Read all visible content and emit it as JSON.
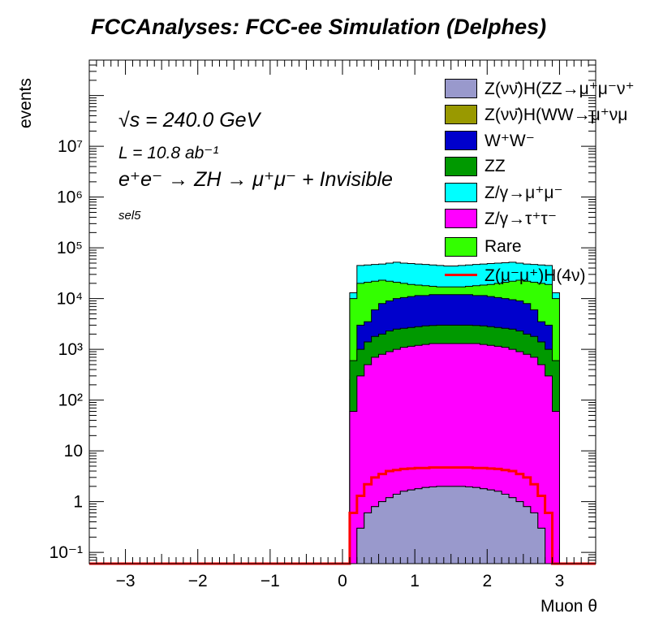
{
  "chart_data": {
    "type": "stacked-histogram",
    "title": "FCCAnalyses: FCC-ee Simulation (Delphes)",
    "xlabel": "Muon θ",
    "ylabel": "events",
    "xlim": [
      -3.5,
      3.5
    ],
    "ylim": [
      0.06,
      500000000
    ],
    "log_y": true,
    "x_ticks": [
      "−3",
      "−2",
      "−1",
      "0",
      "1",
      "2",
      "3"
    ],
    "x_tick_values": [
      -3,
      -2,
      -1,
      0,
      1,
      2,
      3
    ],
    "y_ticks": [
      "10⁻¹",
      "1",
      "10",
      "10²",
      "10³",
      "10⁴",
      "10⁵",
      "10⁶",
      "10⁷"
    ],
    "y_tick_values": [
      0.1,
      1,
      10,
      100,
      1000,
      10000,
      100000,
      1000000,
      10000000
    ],
    "annotations": [
      "√s = 240.0 GeV",
      "L = 10.8 ab⁻¹",
      "e⁺e⁻ → ZH → μ⁺μ⁻ + Invisible",
      "sel5"
    ],
    "legend_placement": "top-right",
    "bin_range": [
      0.1,
      3.0
    ],
    "bin_width": 0.1,
    "series": [
      {
        "name": "Z(νν̄)H(ZZ→μ⁺μ⁻ν⁺",
        "color": "#9999cc",
        "top": [
          0.06,
          0.3,
          0.6,
          0.8,
          1.0,
          1.2,
          1.4,
          1.6,
          1.7,
          1.8,
          1.9,
          1.95,
          2.0,
          2.0,
          2.0,
          2.0,
          1.95,
          1.9,
          1.8,
          1.7,
          1.6,
          1.4,
          1.2,
          1.0,
          0.8,
          0.6,
          0.3,
          0.06,
          0.06
        ]
      },
      {
        "name": "Z(νν̄)H(WW→μ⁺νμ",
        "color": "#999900",
        "top": [
          0.06,
          0.3,
          0.6,
          0.8,
          1.0,
          1.2,
          1.4,
          1.6,
          1.7,
          1.8,
          1.9,
          1.95,
          2.0,
          2.0,
          2.0,
          2.0,
          1.95,
          1.9,
          1.8,
          1.7,
          1.6,
          1.4,
          1.2,
          1.0,
          0.8,
          0.6,
          0.3,
          0.06,
          0.06
        ]
      },
      {
        "name": "W⁺W⁻",
        "color": "#0000cc",
        "top": [
          250,
          3000,
          3500,
          6000,
          8000,
          9000,
          10000,
          10500,
          11000,
          11500,
          11500,
          12000,
          12000,
          12000,
          12000,
          12000,
          12000,
          11500,
          11500,
          11000,
          10500,
          10000,
          9500,
          9000,
          8000,
          6000,
          3500,
          3000,
          250
        ]
      },
      {
        "name": "ZZ",
        "color": "#009900",
        "top": [
          600,
          1000,
          1400,
          1800,
          2000,
          2300,
          2500,
          2600,
          2700,
          2800,
          2900,
          2950,
          3000,
          3000,
          3000,
          3000,
          3000,
          2950,
          2900,
          2800,
          2700,
          2600,
          2500,
          2300,
          2000,
          1800,
          1400,
          1000,
          600
        ]
      },
      {
        "name": "Z/γ→μ⁺μ⁻",
        "color": "#00ffff",
        "top": [
          13000,
          45000,
          46000,
          47000,
          48000,
          50000,
          52000,
          50000,
          49000,
          48000,
          47000,
          46000,
          45000,
          44000,
          44000,
          45000,
          46000,
          47000,
          48000,
          49000,
          50000,
          51000,
          52000,
          50000,
          48000,
          47000,
          46000,
          45000,
          13000
        ]
      },
      {
        "name": "Z/γ→τ⁺τ⁻",
        "color": "#ff00ff",
        "top": [
          60,
          300,
          500,
          700,
          800,
          900,
          1000,
          1100,
          1150,
          1200,
          1250,
          1300,
          1300,
          1300,
          1300,
          1300,
          1300,
          1300,
          1250,
          1200,
          1150,
          1100,
          1000,
          900,
          800,
          700,
          500,
          300,
          60
        ]
      },
      {
        "name": "Rare",
        "color": "#33ff00",
        "top": [
          10000,
          20000,
          21000,
          22000,
          23000,
          22000,
          21000,
          20000,
          19000,
          18500,
          18000,
          17500,
          17000,
          17000,
          17000,
          17000,
          17500,
          18000,
          18500,
          19000,
          20000,
          21000,
          22000,
          23000,
          22000,
          21000,
          20000,
          19000,
          10000
        ]
      },
      {
        "name": "Z(μ⁻μ⁺)H(4ν)",
        "color": "#ff0000",
        "line": [
          0.6,
          1.3,
          2.2,
          3.0,
          3.5,
          4.0,
          4.2,
          4.4,
          4.5,
          4.6,
          4.6,
          4.7,
          4.7,
          4.7,
          4.7,
          4.7,
          4.7,
          4.6,
          4.6,
          4.5,
          4.4,
          4.2,
          4.0,
          3.5,
          3.0,
          2.2,
          1.3,
          0.6,
          0.06
        ]
      }
    ]
  }
}
